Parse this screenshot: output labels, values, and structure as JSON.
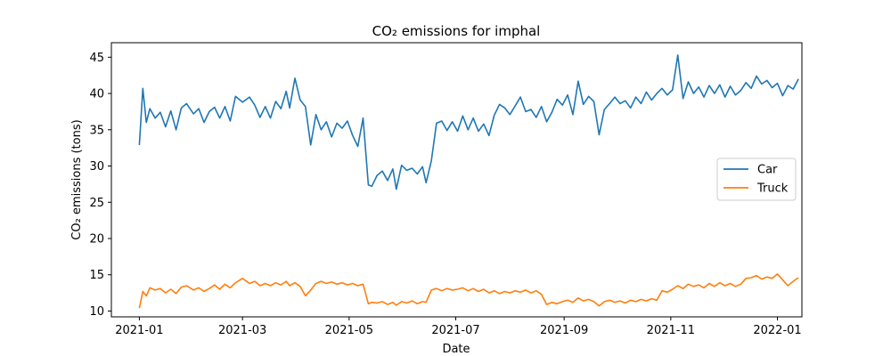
{
  "chart_data": {
    "type": "line",
    "title": "CO₂ emissions for imphal",
    "xlabel": "Date",
    "ylabel": "CO₂ emissions (tons)",
    "xlim": [
      "2020-12-16",
      "2022-01-15"
    ],
    "ylim": [
      9.2,
      47.0
    ],
    "grid": false,
    "legend_position": "center-right",
    "x_ticks": [
      "2021-01-01",
      "2021-03-01",
      "2021-05-01",
      "2021-07-01",
      "2021-09-01",
      "2021-11-01",
      "2022-01-01"
    ],
    "x_tick_labels": [
      "2021-01",
      "2021-03",
      "2021-05",
      "2021-07",
      "2021-09",
      "2021-11",
      "2022-01"
    ],
    "y_ticks": [
      10,
      15,
      20,
      25,
      30,
      35,
      40,
      45
    ],
    "series": [
      {
        "name": "Car",
        "color": "#1f77b4",
        "points": [
          [
            "2021-01-01",
            32.9
          ],
          [
            "2021-01-03",
            40.7
          ],
          [
            "2021-01-05",
            36.0
          ],
          [
            "2021-01-07",
            37.9
          ],
          [
            "2021-01-10",
            36.6
          ],
          [
            "2021-01-13",
            37.4
          ],
          [
            "2021-01-16",
            35.4
          ],
          [
            "2021-01-19",
            37.6
          ],
          [
            "2021-01-22",
            35.0
          ],
          [
            "2021-01-25",
            38.0
          ],
          [
            "2021-01-28",
            38.6
          ],
          [
            "2021-02-01",
            37.2
          ],
          [
            "2021-02-04",
            37.9
          ],
          [
            "2021-02-07",
            36.0
          ],
          [
            "2021-02-10",
            37.5
          ],
          [
            "2021-02-13",
            38.1
          ],
          [
            "2021-02-16",
            36.6
          ],
          [
            "2021-02-19",
            38.2
          ],
          [
            "2021-02-22",
            36.2
          ],
          [
            "2021-02-25",
            39.6
          ],
          [
            "2021-03-01",
            38.8
          ],
          [
            "2021-03-05",
            39.5
          ],
          [
            "2021-03-08",
            38.4
          ],
          [
            "2021-03-11",
            36.7
          ],
          [
            "2021-03-14",
            38.2
          ],
          [
            "2021-03-17",
            36.6
          ],
          [
            "2021-03-20",
            38.9
          ],
          [
            "2021-03-23",
            37.9
          ],
          [
            "2021-03-26",
            40.3
          ],
          [
            "2021-03-28",
            38.0
          ],
          [
            "2021-03-31",
            42.1
          ],
          [
            "2021-04-03",
            39.1
          ],
          [
            "2021-04-06",
            38.2
          ],
          [
            "2021-04-09",
            32.9
          ],
          [
            "2021-04-12",
            37.1
          ],
          [
            "2021-04-15",
            35.0
          ],
          [
            "2021-04-18",
            36.1
          ],
          [
            "2021-04-21",
            34.0
          ],
          [
            "2021-04-24",
            35.9
          ],
          [
            "2021-04-27",
            35.2
          ],
          [
            "2021-04-30",
            36.2
          ],
          [
            "2021-05-03",
            34.2
          ],
          [
            "2021-05-06",
            32.7
          ],
          [
            "2021-05-09",
            36.6
          ],
          [
            "2021-05-12",
            27.4
          ],
          [
            "2021-05-14",
            27.2
          ],
          [
            "2021-05-17",
            28.7
          ],
          [
            "2021-05-20",
            29.3
          ],
          [
            "2021-05-23",
            28.0
          ],
          [
            "2021-05-26",
            29.6
          ],
          [
            "2021-05-28",
            26.8
          ],
          [
            "2021-05-31",
            30.1
          ],
          [
            "2021-06-03",
            29.4
          ],
          [
            "2021-06-06",
            29.7
          ],
          [
            "2021-06-09",
            28.9
          ],
          [
            "2021-06-12",
            29.9
          ],
          [
            "2021-06-14",
            27.7
          ],
          [
            "2021-06-17",
            30.7
          ],
          [
            "2021-06-20",
            35.9
          ],
          [
            "2021-06-23",
            36.2
          ],
          [
            "2021-06-26",
            34.9
          ],
          [
            "2021-06-29",
            36.1
          ],
          [
            "2021-07-02",
            34.8
          ],
          [
            "2021-07-05",
            36.9
          ],
          [
            "2021-07-08",
            35.0
          ],
          [
            "2021-07-11",
            36.6
          ],
          [
            "2021-07-14",
            34.8
          ],
          [
            "2021-07-17",
            35.8
          ],
          [
            "2021-07-20",
            34.2
          ],
          [
            "2021-07-23",
            37.0
          ],
          [
            "2021-07-26",
            38.5
          ],
          [
            "2021-07-29",
            38.0
          ],
          [
            "2021-08-01",
            37.1
          ],
          [
            "2021-08-04",
            38.3
          ],
          [
            "2021-08-07",
            39.5
          ],
          [
            "2021-08-10",
            37.5
          ],
          [
            "2021-08-13",
            37.8
          ],
          [
            "2021-08-16",
            36.7
          ],
          [
            "2021-08-19",
            38.2
          ],
          [
            "2021-08-22",
            36.1
          ],
          [
            "2021-08-25",
            37.4
          ],
          [
            "2021-08-28",
            39.2
          ],
          [
            "2021-08-31",
            38.4
          ],
          [
            "2021-09-03",
            39.8
          ],
          [
            "2021-09-06",
            37.1
          ],
          [
            "2021-09-09",
            41.7
          ],
          [
            "2021-09-12",
            38.5
          ],
          [
            "2021-09-15",
            39.6
          ],
          [
            "2021-09-18",
            38.9
          ],
          [
            "2021-09-21",
            34.3
          ],
          [
            "2021-09-24",
            37.8
          ],
          [
            "2021-09-27",
            38.6
          ],
          [
            "2021-09-30",
            39.5
          ],
          [
            "2021-10-03",
            38.6
          ],
          [
            "2021-10-06",
            39.0
          ],
          [
            "2021-10-09",
            38.0
          ],
          [
            "2021-10-12",
            39.5
          ],
          [
            "2021-10-15",
            38.6
          ],
          [
            "2021-10-18",
            40.2
          ],
          [
            "2021-10-21",
            39.1
          ],
          [
            "2021-10-24",
            40.0
          ],
          [
            "2021-10-27",
            40.7
          ],
          [
            "2021-10-30",
            39.8
          ],
          [
            "2021-11-02",
            40.5
          ],
          [
            "2021-11-05",
            45.3
          ],
          [
            "2021-11-08",
            39.3
          ],
          [
            "2021-11-11",
            41.6
          ],
          [
            "2021-11-14",
            40.0
          ],
          [
            "2021-11-17",
            40.9
          ],
          [
            "2021-11-20",
            39.5
          ],
          [
            "2021-11-23",
            41.1
          ],
          [
            "2021-11-26",
            40.0
          ],
          [
            "2021-11-29",
            41.2
          ],
          [
            "2021-12-02",
            39.5
          ],
          [
            "2021-12-05",
            41.0
          ],
          [
            "2021-12-08",
            39.8
          ],
          [
            "2021-12-11",
            40.4
          ],
          [
            "2021-12-14",
            41.5
          ],
          [
            "2021-12-17",
            40.7
          ],
          [
            "2021-12-20",
            42.4
          ],
          [
            "2021-12-23",
            41.3
          ],
          [
            "2021-12-26",
            41.8
          ],
          [
            "2021-12-29",
            40.8
          ],
          [
            "2022-01-01",
            41.4
          ],
          [
            "2022-01-04",
            39.7
          ],
          [
            "2022-01-07",
            41.1
          ],
          [
            "2022-01-10",
            40.6
          ],
          [
            "2022-01-13",
            42.0
          ]
        ]
      },
      {
        "name": "Truck",
        "color": "#ff7f0e",
        "points": [
          [
            "2021-01-01",
            10.4
          ],
          [
            "2021-01-03",
            12.7
          ],
          [
            "2021-01-05",
            12.1
          ],
          [
            "2021-01-07",
            13.2
          ],
          [
            "2021-01-10",
            12.9
          ],
          [
            "2021-01-13",
            13.1
          ],
          [
            "2021-01-16",
            12.5
          ],
          [
            "2021-01-19",
            13.0
          ],
          [
            "2021-01-22",
            12.4
          ],
          [
            "2021-01-25",
            13.3
          ],
          [
            "2021-01-28",
            13.5
          ],
          [
            "2021-02-01",
            12.9
          ],
          [
            "2021-02-04",
            13.2
          ],
          [
            "2021-02-07",
            12.7
          ],
          [
            "2021-02-10",
            13.1
          ],
          [
            "2021-02-13",
            13.6
          ],
          [
            "2021-02-16",
            13.0
          ],
          [
            "2021-02-19",
            13.7
          ],
          [
            "2021-02-22",
            13.2
          ],
          [
            "2021-02-25",
            13.9
          ],
          [
            "2021-03-01",
            14.5
          ],
          [
            "2021-03-05",
            13.8
          ],
          [
            "2021-03-08",
            14.1
          ],
          [
            "2021-03-11",
            13.5
          ],
          [
            "2021-03-14",
            13.8
          ],
          [
            "2021-03-17",
            13.5
          ],
          [
            "2021-03-20",
            13.9
          ],
          [
            "2021-03-23",
            13.6
          ],
          [
            "2021-03-26",
            14.1
          ],
          [
            "2021-03-28",
            13.5
          ],
          [
            "2021-03-31",
            13.9
          ],
          [
            "2021-04-03",
            13.4
          ],
          [
            "2021-04-06",
            12.1
          ],
          [
            "2021-04-09",
            12.9
          ],
          [
            "2021-04-12",
            13.8
          ],
          [
            "2021-04-15",
            14.1
          ],
          [
            "2021-04-18",
            13.8
          ],
          [
            "2021-04-21",
            14.0
          ],
          [
            "2021-04-24",
            13.7
          ],
          [
            "2021-04-27",
            13.9
          ],
          [
            "2021-04-30",
            13.6
          ],
          [
            "2021-05-03",
            13.8
          ],
          [
            "2021-05-06",
            13.5
          ],
          [
            "2021-05-09",
            13.7
          ],
          [
            "2021-05-12",
            11.0
          ],
          [
            "2021-05-14",
            11.2
          ],
          [
            "2021-05-17",
            11.1
          ],
          [
            "2021-05-20",
            11.3
          ],
          [
            "2021-05-23",
            10.9
          ],
          [
            "2021-05-26",
            11.2
          ],
          [
            "2021-05-28",
            10.8
          ],
          [
            "2021-05-31",
            11.3
          ],
          [
            "2021-06-03",
            11.1
          ],
          [
            "2021-06-06",
            11.4
          ],
          [
            "2021-06-09",
            11.0
          ],
          [
            "2021-06-12",
            11.3
          ],
          [
            "2021-06-14",
            11.2
          ],
          [
            "2021-06-17",
            12.9
          ],
          [
            "2021-06-20",
            13.1
          ],
          [
            "2021-06-23",
            12.8
          ],
          [
            "2021-06-26",
            13.1
          ],
          [
            "2021-06-29",
            12.9
          ],
          [
            "2021-07-02",
            13.0
          ],
          [
            "2021-07-05",
            13.2
          ],
          [
            "2021-07-08",
            12.8
          ],
          [
            "2021-07-11",
            13.1
          ],
          [
            "2021-07-14",
            12.7
          ],
          [
            "2021-07-17",
            13.0
          ],
          [
            "2021-07-20",
            12.5
          ],
          [
            "2021-07-23",
            12.8
          ],
          [
            "2021-07-26",
            12.4
          ],
          [
            "2021-07-29",
            12.7
          ],
          [
            "2021-08-01",
            12.5
          ],
          [
            "2021-08-04",
            12.8
          ],
          [
            "2021-08-07",
            12.6
          ],
          [
            "2021-08-10",
            12.9
          ],
          [
            "2021-08-13",
            12.5
          ],
          [
            "2021-08-16",
            12.8
          ],
          [
            "2021-08-19",
            12.3
          ],
          [
            "2021-08-22",
            10.9
          ],
          [
            "2021-08-25",
            11.2
          ],
          [
            "2021-08-28",
            11.0
          ],
          [
            "2021-08-31",
            11.3
          ],
          [
            "2021-09-03",
            11.5
          ],
          [
            "2021-09-06",
            11.2
          ],
          [
            "2021-09-09",
            11.8
          ],
          [
            "2021-09-12",
            11.4
          ],
          [
            "2021-09-15",
            11.6
          ],
          [
            "2021-09-18",
            11.3
          ],
          [
            "2021-09-21",
            10.7
          ],
          [
            "2021-09-24",
            11.3
          ],
          [
            "2021-09-27",
            11.5
          ],
          [
            "2021-09-30",
            11.2
          ],
          [
            "2021-10-03",
            11.4
          ],
          [
            "2021-10-06",
            11.1
          ],
          [
            "2021-10-09",
            11.5
          ],
          [
            "2021-10-12",
            11.3
          ],
          [
            "2021-10-15",
            11.6
          ],
          [
            "2021-10-18",
            11.4
          ],
          [
            "2021-10-21",
            11.7
          ],
          [
            "2021-10-24",
            11.5
          ],
          [
            "2021-10-27",
            12.8
          ],
          [
            "2021-10-30",
            12.6
          ],
          [
            "2021-11-02",
            13.0
          ],
          [
            "2021-11-05",
            13.5
          ],
          [
            "2021-11-08",
            13.1
          ],
          [
            "2021-11-11",
            13.7
          ],
          [
            "2021-11-14",
            13.4
          ],
          [
            "2021-11-17",
            13.6
          ],
          [
            "2021-11-20",
            13.2
          ],
          [
            "2021-11-23",
            13.8
          ],
          [
            "2021-11-26",
            13.4
          ],
          [
            "2021-11-29",
            13.9
          ],
          [
            "2021-12-02",
            13.5
          ],
          [
            "2021-12-05",
            13.8
          ],
          [
            "2021-12-08",
            13.4
          ],
          [
            "2021-12-11",
            13.7
          ],
          [
            "2021-12-14",
            14.5
          ],
          [
            "2021-12-17",
            14.6
          ],
          [
            "2021-12-20",
            14.9
          ],
          [
            "2021-12-23",
            14.4
          ],
          [
            "2021-12-26",
            14.7
          ],
          [
            "2021-12-29",
            14.5
          ],
          [
            "2022-01-01",
            15.1
          ],
          [
            "2022-01-04",
            14.3
          ],
          [
            "2022-01-07",
            13.5
          ],
          [
            "2022-01-10",
            14.1
          ],
          [
            "2022-01-13",
            14.6
          ]
        ]
      }
    ]
  }
}
